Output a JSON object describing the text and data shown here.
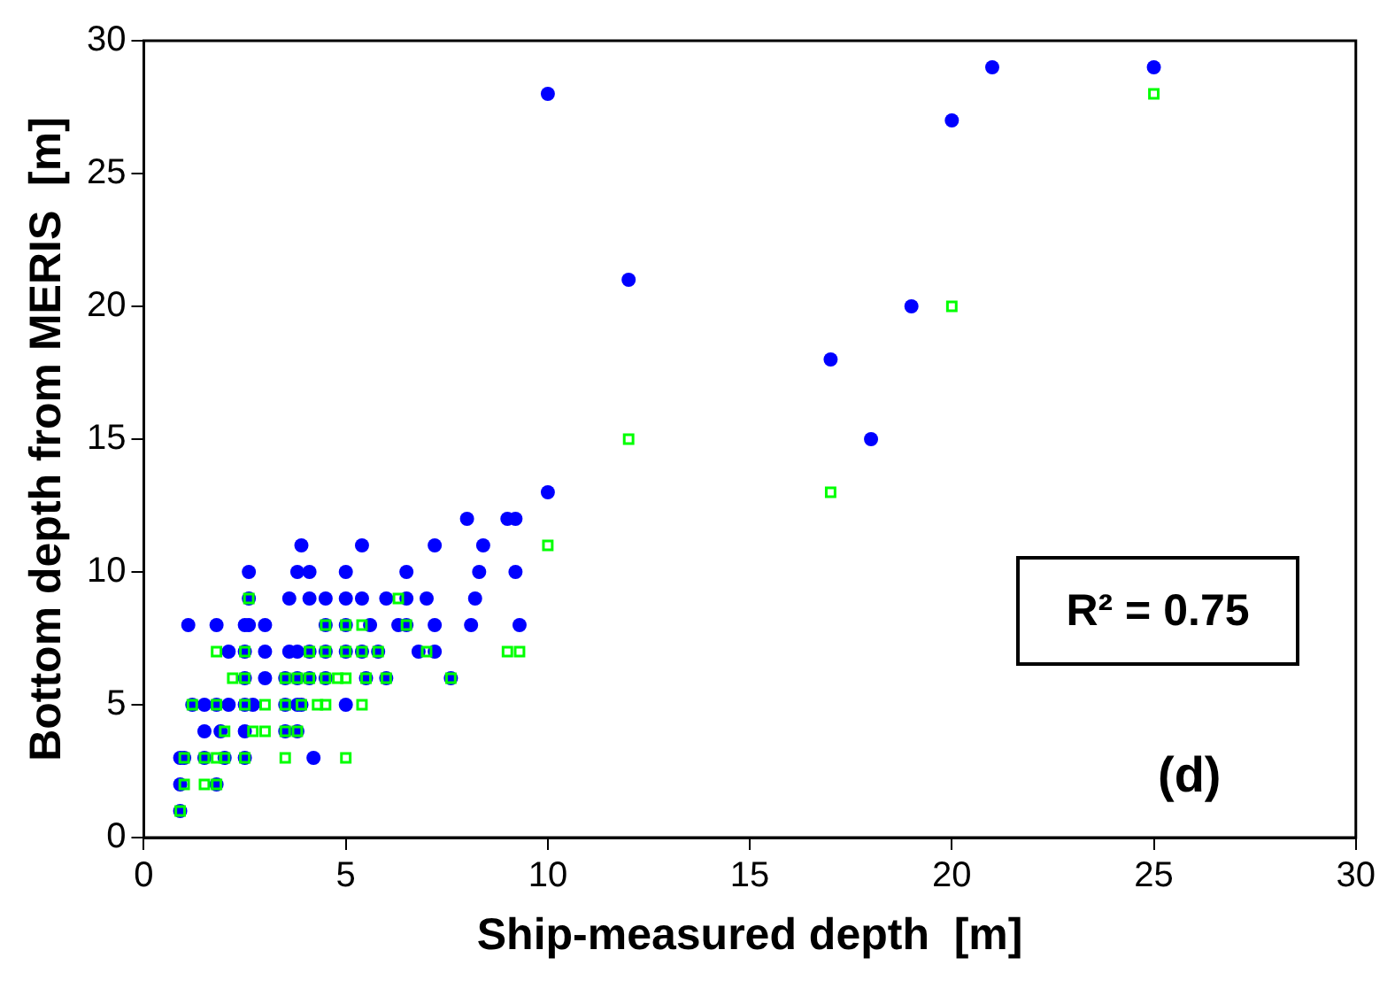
{
  "chart_data": {
    "type": "scatter",
    "xlabel": "Ship-measured depth  [m]",
    "ylabel": "Bottom depth from MERIS  [m]",
    "xlim": [
      0,
      30
    ],
    "xticks": [
      0,
      5,
      10,
      15,
      20,
      25,
      30
    ],
    "ylim": [
      0,
      30
    ],
    "yticks": [
      0,
      5,
      10,
      15,
      20,
      25,
      30
    ],
    "grid": false,
    "legend": false,
    "annotations": [
      "R² = 0.75",
      "(d)"
    ],
    "series": [
      {
        "color": "#0000ff",
        "marker": "circle",
        "x": [
          0.9,
          0.9,
          1.8,
          0.9,
          1.0,
          1.5,
          2.0,
          2.5,
          4.2,
          1.5,
          1.9,
          2.5,
          3.5,
          3.8,
          1.2,
          1.5,
          1.8,
          2.1,
          2.5,
          2.7,
          3.5,
          3.8,
          3.9,
          5.0,
          2.5,
          3.0,
          3.5,
          3.8,
          4.1,
          4.5,
          5.5,
          6.0,
          7.6,
          2.1,
          2.5,
          3.0,
          3.6,
          3.8,
          4.1,
          4.5,
          5.0,
          5.4,
          5.8,
          6.8,
          7.2,
          1.1,
          1.8,
          2.5,
          2.6,
          3.0,
          4.5,
          5.0,
          5.6,
          6.3,
          6.5,
          7.2,
          8.1,
          9.3,
          2.6,
          3.6,
          4.1,
          4.5,
          5.0,
          5.4,
          6.0,
          6.5,
          7.0,
          8.2,
          2.6,
          3.8,
          4.1,
          5.0,
          6.5,
          8.3,
          9.2,
          3.9,
          5.4,
          7.2,
          8.4,
          8.0,
          9.0,
          9.2,
          10,
          18,
          17,
          19,
          12,
          20,
          10,
          21,
          25
        ],
        "values": [
          1,
          2,
          2,
          3,
          3,
          3,
          3,
          3,
          3,
          4,
          4,
          4,
          4,
          4,
          5,
          5,
          5,
          5,
          5,
          5,
          5,
          5,
          5,
          5,
          6,
          6,
          6,
          6,
          6,
          6,
          6,
          6,
          6,
          7,
          7,
          7,
          7,
          7,
          7,
          7,
          7,
          7,
          7,
          7,
          7,
          8,
          8,
          8,
          8,
          8,
          8,
          8,
          8,
          8,
          8,
          8,
          8,
          8,
          9,
          9,
          9,
          9,
          9,
          9,
          9,
          9,
          9,
          9,
          10,
          10,
          10,
          10,
          10,
          10,
          10,
          11,
          11,
          11,
          11,
          12,
          12,
          12,
          13,
          15,
          18,
          20,
          21,
          27,
          28,
          29,
          29
        ]
      },
      {
        "color": "#00ff00",
        "marker": "square",
        "x": [
          0.9,
          1.0,
          1.5,
          1.8,
          1.0,
          1.5,
          1.8,
          2.0,
          2.5,
          3.5,
          5.0,
          2.0,
          2.7,
          3.0,
          3.5,
          3.8,
          1.2,
          1.8,
          2.5,
          3.0,
          3.5,
          3.9,
          4.3,
          4.5,
          5.4,
          2.2,
          2.5,
          3.5,
          3.8,
          4.1,
          4.5,
          4.8,
          5.0,
          5.5,
          6.0,
          7.6,
          1.8,
          2.5,
          4.1,
          4.5,
          5.0,
          5.4,
          5.8,
          7.0,
          9.0,
          9.3,
          4.5,
          5.0,
          5.4,
          6.5,
          2.6,
          6.3,
          10,
          17,
          12,
          20,
          25
        ],
        "values": [
          1,
          2,
          2,
          2,
          3,
          3,
          3,
          3,
          3,
          3,
          3,
          4,
          4,
          4,
          4,
          4,
          5,
          5,
          5,
          5,
          5,
          5,
          5,
          5,
          5,
          6,
          6,
          6,
          6,
          6,
          6,
          6,
          6,
          6,
          6,
          6,
          7,
          7,
          7,
          7,
          7,
          7,
          7,
          7,
          7,
          7,
          8,
          8,
          8,
          8,
          9,
          9,
          11,
          13,
          15,
          20,
          28
        ]
      }
    ]
  }
}
